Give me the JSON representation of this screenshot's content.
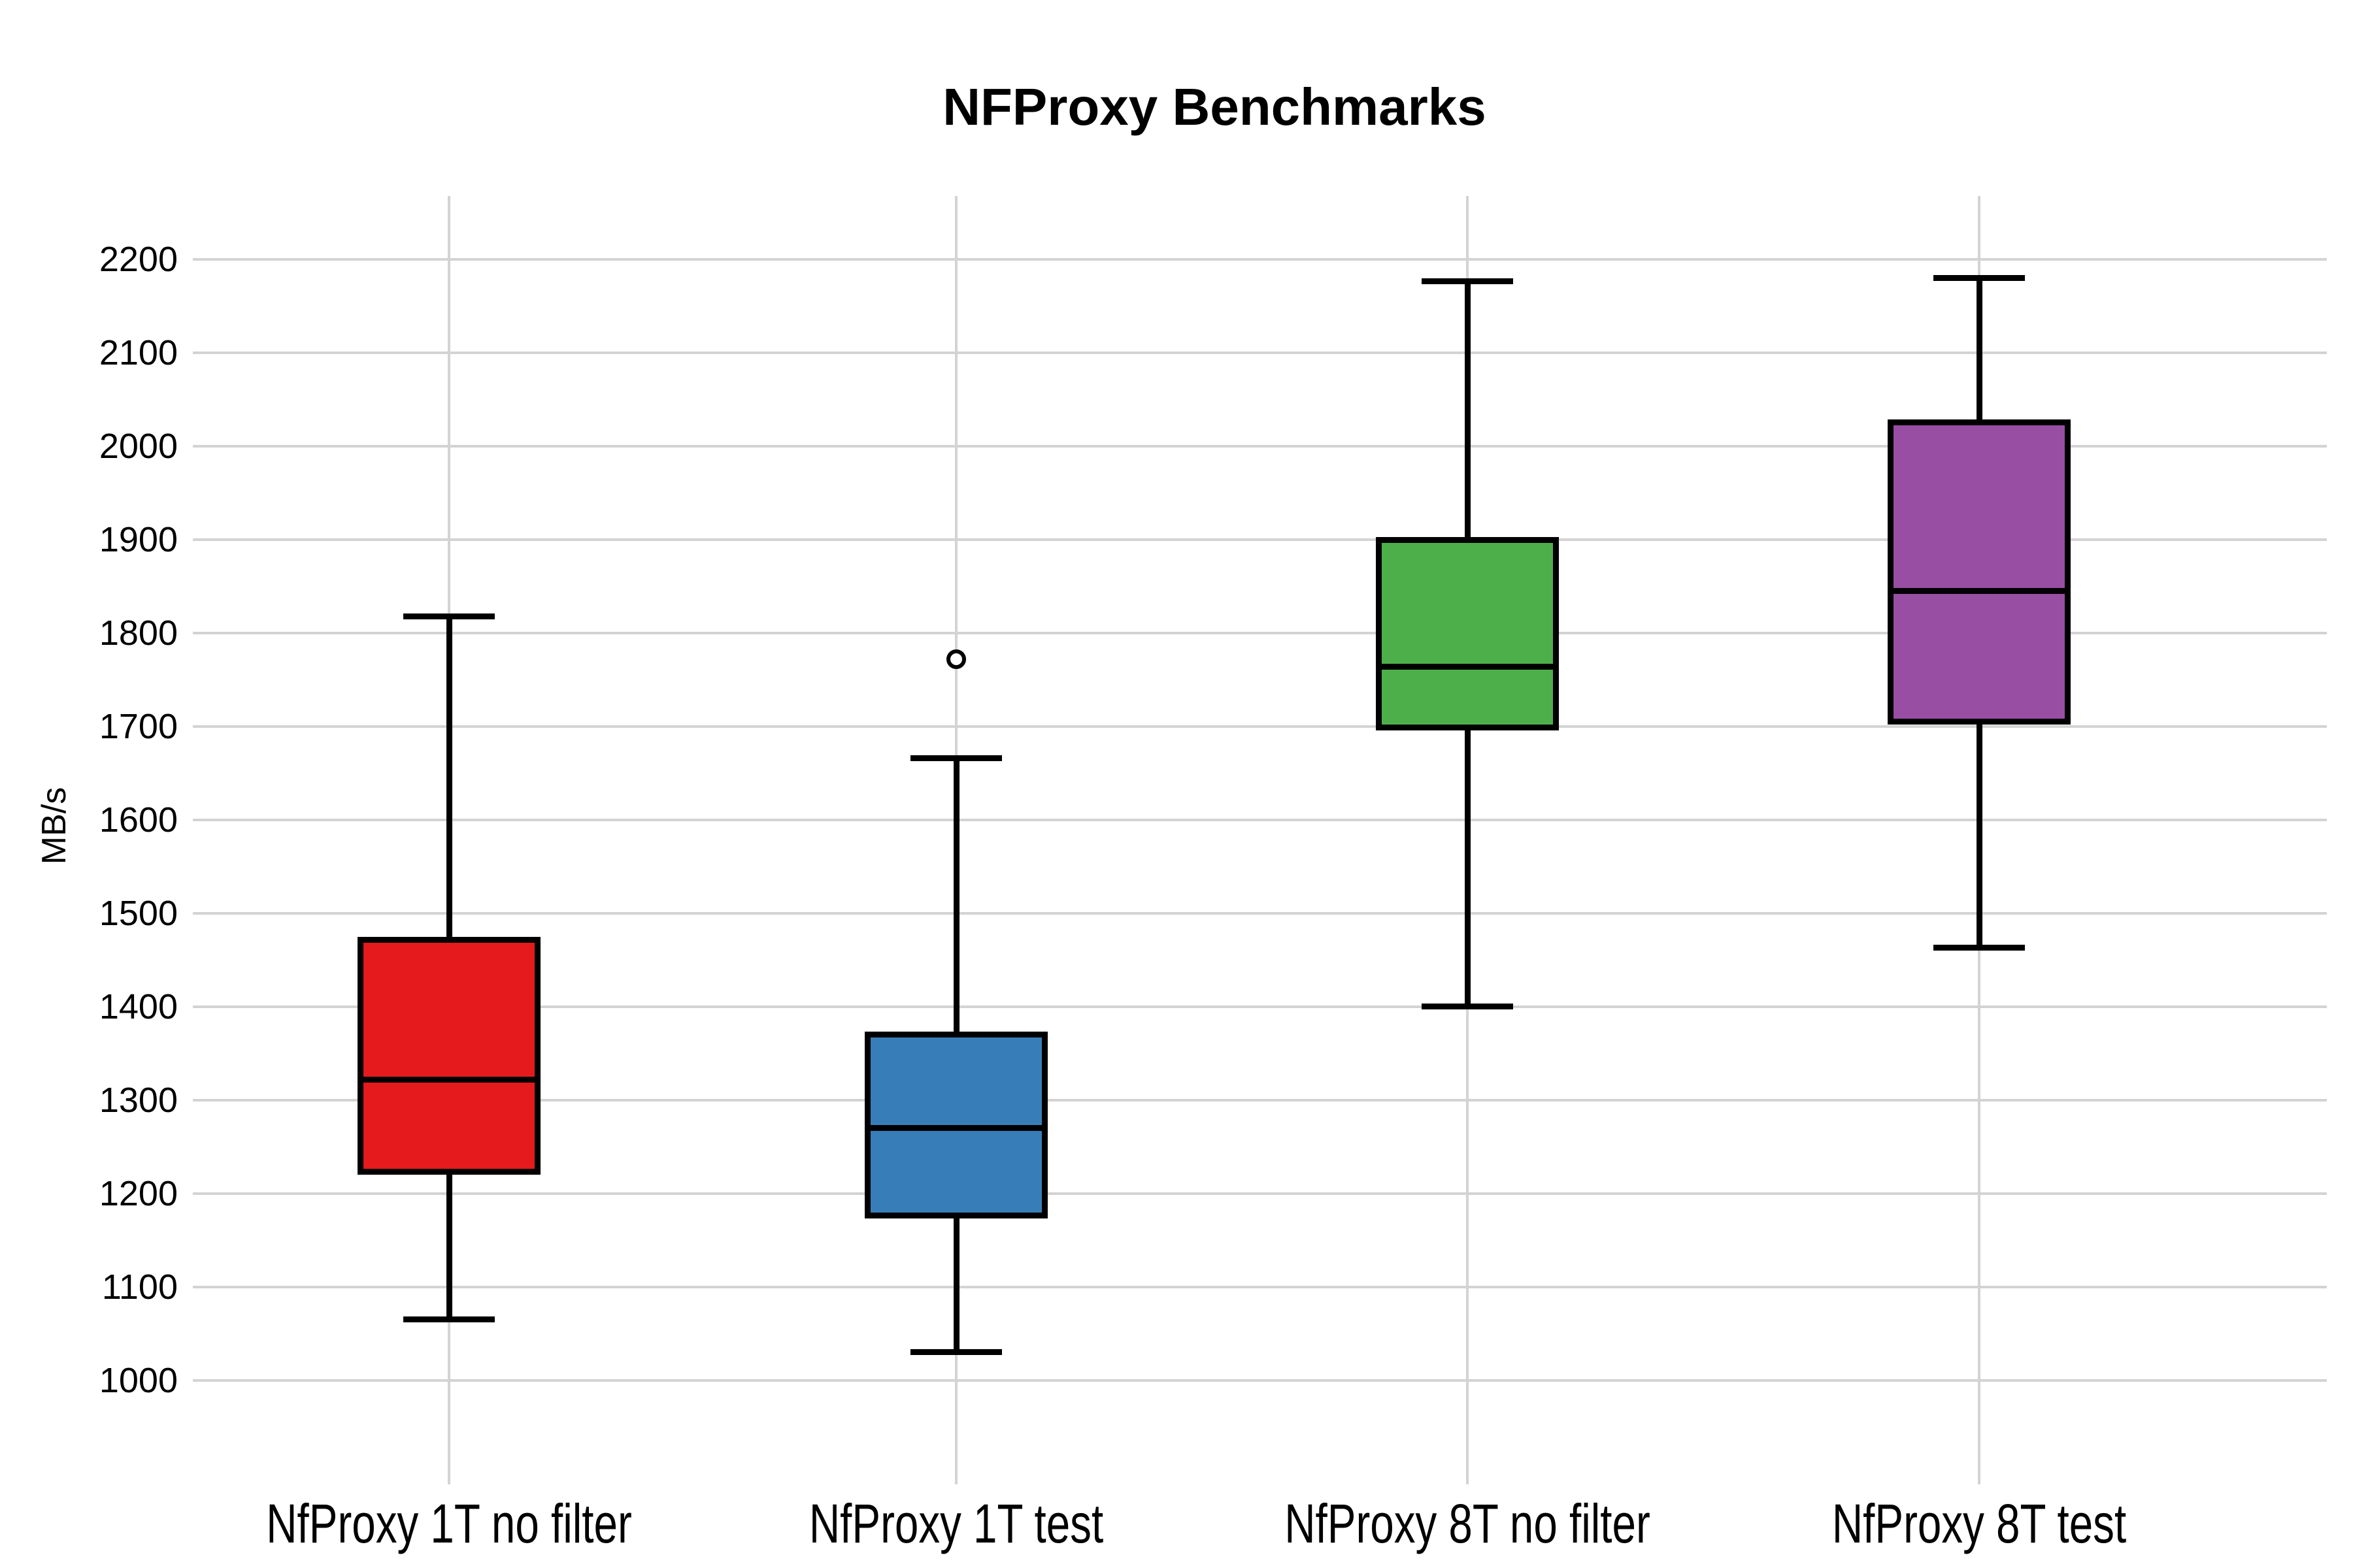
{
  "page": {
    "background": "#ffffff"
  },
  "chart_data": {
    "type": "boxplot",
    "title": "NFProxy Benchmarks",
    "ylabel": "MB/s",
    "xlabel": "",
    "ylim": [
      920,
      2268
    ],
    "yticks": [
      1000,
      1100,
      1200,
      1300,
      1400,
      1500,
      1600,
      1700,
      1800,
      1900,
      2000,
      2100,
      2200
    ],
    "grid": true,
    "grid_color": "#d3d3d3",
    "text_color": "#000000",
    "box_edge_color": "#000000",
    "categories": [
      "NfProxy 1T no filter",
      "NfProxy 1T test",
      "NfProxy 8T no filter",
      "NfProxy 8T test"
    ],
    "series": [
      {
        "name": "NfProxy 1T no filter",
        "color": "#e41a1c",
        "whisker_low": 1065,
        "q1": 1220,
        "median": 1322,
        "q3": 1475,
        "whisker_high": 1818,
        "outliers": []
      },
      {
        "name": "NfProxy 1T test",
        "color": "#377eb8",
        "whisker_low": 1030,
        "q1": 1173,
        "median": 1270,
        "q3": 1373,
        "whisker_high": 1666,
        "outliers": [
          1772
        ]
      },
      {
        "name": "NfProxy 8T no filter",
        "color": "#4daf4a",
        "whisker_low": 1400,
        "q1": 1696,
        "median": 1764,
        "q3": 1903,
        "whisker_high": 2177,
        "outliers": []
      },
      {
        "name": "NfProxy 8T test",
        "color": "#984ea3",
        "whisker_low": 1463,
        "q1": 1702,
        "median": 1845,
        "q3": 2029,
        "whisker_high": 2180,
        "outliers": []
      }
    ]
  }
}
